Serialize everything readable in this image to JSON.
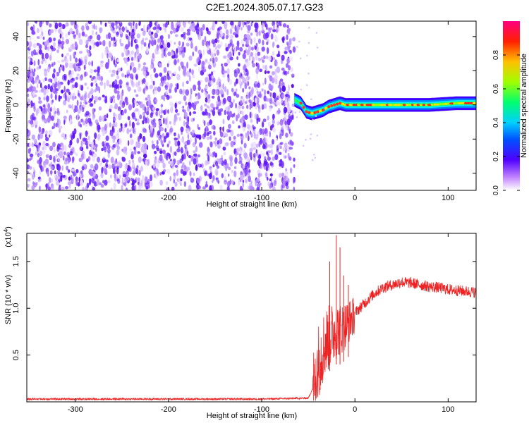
{
  "title": "C2E1.2024.305.07.17.G23",
  "chart_data": [
    {
      "type": "heatmap",
      "xlabel": "Height of straight line (km)",
      "ylabel": "Frequency (Hz)",
      "xlim": [
        -352,
        130
      ],
      "ylim": [
        -50,
        49
      ],
      "xticks": [
        -300,
        -200,
        -100,
        0,
        100
      ],
      "yticks": [
        -40,
        -20,
        0,
        20,
        40
      ],
      "colorbar": {
        "label": "Normalized spectral amplitude",
        "range": [
          0,
          1
        ],
        "ticks": [
          "0.0",
          "0.2",
          "0.4",
          "0.6",
          "0.8"
        ],
        "tick_values": [
          0.0,
          0.2,
          0.4,
          0.6,
          0.8
        ],
        "colors": [
          "#ffffff",
          "#a040ff",
          "#4000ff",
          "#0060ff",
          "#00e0ff",
          "#00ff60",
          "#c0ff00",
          "#ffb000",
          "#ff2000",
          "#ff0080"
        ]
      },
      "noise_region_x": [
        -352,
        -65
      ],
      "signal_ridge": {
        "x": [
          -65,
          -58,
          -52,
          -46,
          -40,
          -34,
          -28,
          -22,
          -16,
          -10,
          0,
          20,
          50,
          80,
          110,
          130
        ],
        "freq_hz": [
          3,
          1,
          -4,
          -5,
          -4,
          -3,
          -1,
          0,
          1,
          0,
          0,
          0,
          0,
          0,
          1,
          1
        ]
      }
    },
    {
      "type": "line",
      "xlabel": "Height of straight line (km)",
      "ylabel": "SNR (10 * v/v)",
      "y_multiplier": "x10^4",
      "y_multiplier_base": "(x10",
      "y_multiplier_exp": "4",
      "xlim": [
        -352,
        130
      ],
      "ylim": [
        0,
        1.8
      ],
      "xticks": [
        -300,
        -200,
        -100,
        0,
        100
      ],
      "yticks": [
        "0.5",
        "1.0",
        "1.5"
      ],
      "ytick_values": [
        0.5,
        1.0,
        1.5
      ],
      "series": [
        {
          "color": "#ee2222",
          "x": [
            -352,
            -300,
            -200,
            -100,
            -50,
            -45,
            -40,
            -35,
            -30,
            -25,
            -20,
            -15,
            -10,
            -5,
            0,
            10,
            20,
            30,
            40,
            50,
            60,
            70,
            80,
            90,
            100,
            110,
            120,
            130
          ],
          "y": [
            0.03,
            0.03,
            0.03,
            0.03,
            0.04,
            0.15,
            0.45,
            0.6,
            0.7,
            0.75,
            0.8,
            0.8,
            0.85,
            0.9,
            0.95,
            1.05,
            1.15,
            1.22,
            1.25,
            1.28,
            1.27,
            1.25,
            1.23,
            1.22,
            1.2,
            1.19,
            1.18,
            1.17
          ],
          "spikes": [
            [
              -20,
              1.78
            ],
            [
              -16,
              1.65
            ],
            [
              -27,
              1.5
            ],
            [
              -12,
              1.35
            ],
            [
              -7,
              1.25
            ]
          ]
        }
      ]
    }
  ]
}
